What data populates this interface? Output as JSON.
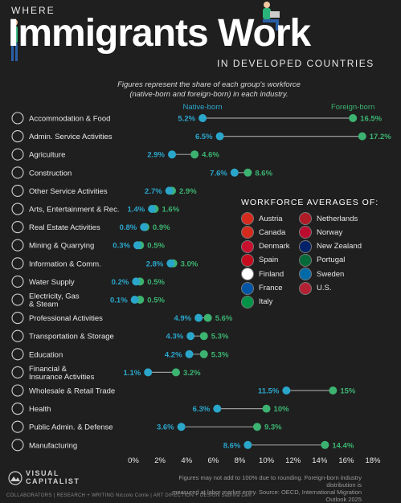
{
  "header": {
    "where": "WHERE",
    "main_title": "Immigrants Work",
    "subtitle": "IN DEVELOPED COUNTRIES",
    "note_line1": "Figures represent the share of each group's workforce",
    "note_line2": "(native-born and foreign-born) in each industry."
  },
  "legend": {
    "native_label": "Native-born",
    "foreign_label": "Foreign-born",
    "averages_title": "WORKFORCE AVERAGES OF:",
    "countries": [
      {
        "name": "Austria",
        "icon": "austria-flag-icon",
        "color": "#d52b1e"
      },
      {
        "name": "Netherlands",
        "icon": "netherlands-flag-icon",
        "color": "#ae1c28"
      },
      {
        "name": "Canada",
        "icon": "canada-flag-icon",
        "color": "#d52b1e"
      },
      {
        "name": "Norway",
        "icon": "norway-flag-icon",
        "color": "#ba0c2f"
      },
      {
        "name": "Denmark",
        "icon": "denmark-flag-icon",
        "color": "#c8102e"
      },
      {
        "name": "New Zealand",
        "icon": "new-zealand-flag-icon",
        "color": "#012169"
      },
      {
        "name": "Spain",
        "icon": "spain-flag-icon",
        "color": "#c60b1e"
      },
      {
        "name": "Portugal",
        "icon": "portugal-flag-icon",
        "color": "#046a38"
      },
      {
        "name": "Finland",
        "icon": "finland-flag-icon",
        "color": "#ffffff"
      },
      {
        "name": "Sweden",
        "icon": "sweden-flag-icon",
        "color": "#006aa7"
      },
      {
        "name": "France",
        "icon": "france-flag-icon",
        "color": "#0055a4"
      },
      {
        "name": "U.S.",
        "icon": "us-flag-icon",
        "color": "#b22234"
      },
      {
        "name": "Italy",
        "icon": "italy-flag-icon",
        "color": "#009246"
      }
    ]
  },
  "chart_data": {
    "type": "scatter",
    "subtype": "dumbbell",
    "title": "Where Immigrants Work in Developed Countries",
    "x_ticks": [
      "0%",
      "2%",
      "4%",
      "6%",
      "8%",
      "10%",
      "12%",
      "14%",
      "16%",
      "18%"
    ],
    "xlim": [
      0,
      18
    ],
    "grid": false,
    "colors": {
      "native": "#2ba6cb",
      "foreign": "#3cb371",
      "connector": "#9a9a9a"
    },
    "series": [
      {
        "name": "Native-born",
        "values": [
          5.2,
          6.5,
          2.9,
          7.6,
          2.7,
          1.4,
          0.8,
          0.3,
          2.8,
          0.2,
          0.1,
          4.9,
          4.3,
          4.2,
          1.1,
          11.5,
          6.3,
          3.6,
          8.6
        ]
      },
      {
        "name": "Foreign-born",
        "values": [
          16.5,
          17.2,
          4.6,
          8.6,
          2.9,
          1.6,
          0.9,
          0.5,
          3.0,
          0.5,
          0.5,
          5.6,
          5.3,
          5.3,
          3.2,
          15,
          10,
          9.3,
          14.4
        ]
      }
    ],
    "categories": [
      {
        "label": "Accommodation & Food",
        "native": 5.2,
        "foreign": 16.5,
        "native_label": "5.2%",
        "foreign_label": "16.5%",
        "icon": "cutlery-icon"
      },
      {
        "label": "Admin. Service Activities",
        "native": 6.5,
        "foreign": 17.2,
        "native_label": "6.5%",
        "foreign_label": "17.2%",
        "icon": "clipboard-icon"
      },
      {
        "label": "Agriculture",
        "native": 2.9,
        "foreign": 4.6,
        "native_label": "2.9%",
        "foreign_label": "4.6%",
        "icon": "tractor-icon"
      },
      {
        "label": "Construction",
        "native": 7.6,
        "foreign": 8.6,
        "native_label": "7.6%",
        "foreign_label": "8.6%",
        "icon": "hard-hat-icon"
      },
      {
        "label": "Other Service Activities",
        "native": 2.7,
        "foreign": 2.9,
        "native_label": "2.7%",
        "foreign_label": "2.9%",
        "icon": "gear-icon"
      },
      {
        "label": "Arts, Entertainment & Rec.",
        "native": 1.4,
        "foreign": 1.6,
        "native_label": "1.4%",
        "foreign_label": "1.6%",
        "icon": "star-icon"
      },
      {
        "label": "Real Estate Activities",
        "native": 0.8,
        "foreign": 0.9,
        "native_label": "0.8%",
        "foreign_label": "0.9%",
        "icon": "house-icon"
      },
      {
        "label": "Mining & Quarrying",
        "native": 0.3,
        "foreign": 0.5,
        "native_label": "0.3%",
        "foreign_label": "0.5%",
        "icon": "pickaxe-icon"
      },
      {
        "label": "Information & Comm.",
        "native": 2.8,
        "foreign": 3.0,
        "native_label": "2.8%",
        "foreign_label": "3.0%",
        "icon": "chat-icon"
      },
      {
        "label": "Water Supply",
        "native": 0.2,
        "foreign": 0.5,
        "native_label": "0.2%",
        "foreign_label": "0.5%",
        "icon": "water-drop-icon"
      },
      {
        "label": "Electricity, Gas\n& Steam",
        "native": 0.1,
        "foreign": 0.5,
        "native_label": "0.1%",
        "foreign_label": "0.5%",
        "icon": "lightning-icon"
      },
      {
        "label": "Professional Activities",
        "native": 4.9,
        "foreign": 5.6,
        "native_label": "4.9%",
        "foreign_label": "5.6%",
        "icon": "briefcase-icon"
      },
      {
        "label": "Transportation & Storage",
        "native": 4.3,
        "foreign": 5.3,
        "native_label": "4.3%",
        "foreign_label": "5.3%",
        "icon": "truck-icon"
      },
      {
        "label": "Education",
        "native": 4.2,
        "foreign": 5.3,
        "native_label": "4.2%",
        "foreign_label": "5.3%",
        "icon": "graduation-cap-icon"
      },
      {
        "label": "Financial &\nInsurance Activities",
        "native": 1.1,
        "foreign": 3.2,
        "native_label": "1.1%",
        "foreign_label": "3.2%",
        "icon": "dollar-icon"
      },
      {
        "label": "Wholesale & Retail Trade",
        "native": 11.5,
        "foreign": 15,
        "native_label": "11.5%",
        "foreign_label": "15%",
        "icon": "shopping-bag-icon"
      },
      {
        "label": "Health",
        "native": 6.3,
        "foreign": 10,
        "native_label": "6.3%",
        "foreign_label": "10%",
        "icon": "medical-cross-icon"
      },
      {
        "label": "Public Admin. & Defense",
        "native": 3.6,
        "foreign": 9.3,
        "native_label": "3.6%",
        "foreign_label": "9.3%",
        "icon": "shield-icon"
      },
      {
        "label": "Manufacturing",
        "native": 8.6,
        "foreign": 14.4,
        "native_label": "8.6%",
        "foreign_label": "14.4%",
        "icon": "factory-icon"
      }
    ]
  },
  "footer": {
    "note_line1": "Figures may not add to 100% due to rounding. Foreign-born industry distribution is",
    "note_line2": "measured at labor market entry. Source: OECD, International Migration Outlook 2025",
    "logo_line1": "VISUAL",
    "logo_line2": "CAPITALIST",
    "credits": "COLLABORATORS  |  RESEARCH + WRITING Niccolo Conte  |  ART DIRECTION + DESIGN Sabrina Lam"
  }
}
